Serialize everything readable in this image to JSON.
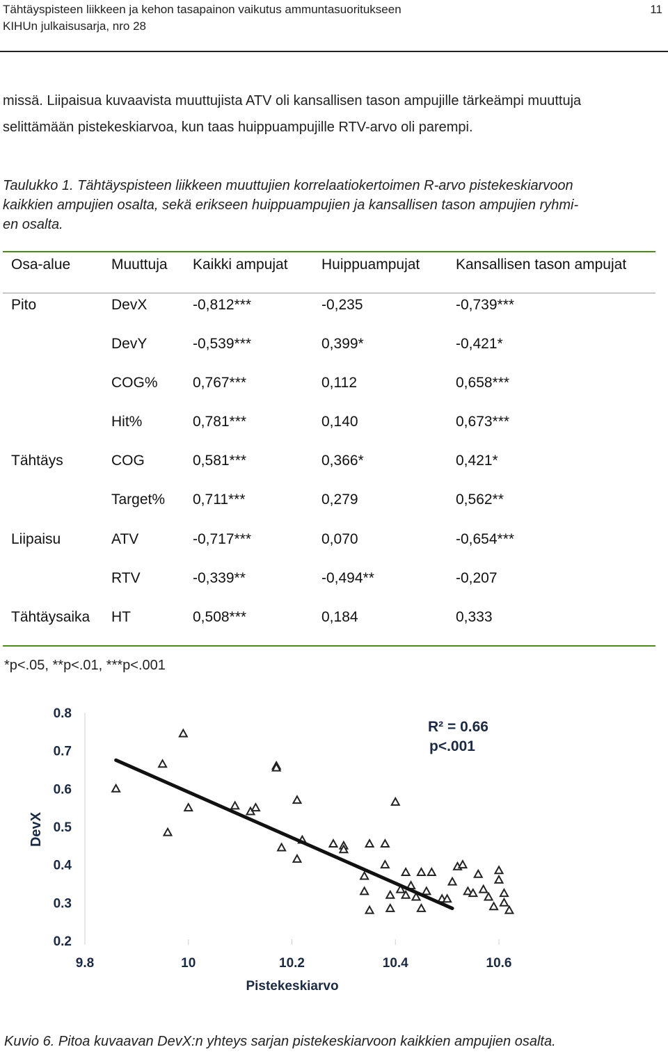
{
  "header": {
    "line1": "Tähtäyspisteen liikkeen ja kehon tasapainon vaikutus ammuntasuoritukseen",
    "line2": "KIHUn julkaisusarja, nro 28",
    "page_number": "11"
  },
  "body": {
    "line1": "missä. Liipaisua kuvaavista muuttujista ATV oli kansallisen tason ampujille tärkeämpi muuttuja",
    "line2": "selittämään pistekeskiarvoa, kun taas huippuampujille RTV-arvo oli parempi."
  },
  "table_caption": {
    "line1": "Taulukko 1. Tähtäyspisteen liikkeen muuttujien korrelaatiokertoimen R-arvo pistekeskiarvoon",
    "line2": "kaikkien ampujien osalta, sekä erikseen huippuampujien ja kansallisen tason ampujien ryhmi-",
    "line3": "en osalta."
  },
  "table": {
    "headers": [
      "Osa-alue",
      "Muuttuja",
      "Kaikki ampujat",
      "Huippuampujat",
      "Kansallisen tason ampujat"
    ],
    "rows": [
      [
        "Pito",
        "DevX",
        "-0,812***",
        "-0,235",
        "-0,739***"
      ],
      [
        "",
        "DevY",
        "-0,539***",
        "0,399*",
        "-0,421*"
      ],
      [
        "",
        "COG%",
        "0,767***",
        "0,112",
        "0,658***"
      ],
      [
        "",
        "Hit%",
        "0,781***",
        "0,140",
        "0,673***"
      ],
      [
        "Tähtäys",
        "COG",
        "0,581***",
        "0,366*",
        "0,421*"
      ],
      [
        "",
        "Target%",
        "0,711***",
        "0,279",
        "0,562**"
      ],
      [
        "Liipaisu",
        "ATV",
        "-0,717***",
        "0,070",
        "-0,654***"
      ],
      [
        "",
        "RTV",
        "-0,339**",
        "-0,494**",
        "-0,207"
      ],
      [
        "Tähtäysaika",
        "HT",
        "0,508***",
        "0,184",
        "0,333"
      ]
    ],
    "footnote": "*p<.05, **p<.01, ***p<.001"
  },
  "chart_data": {
    "type": "scatter",
    "xlabel": "Pistekeskiarvo",
    "ylabel": "DevX",
    "xlim": [
      9.8,
      10.6
    ],
    "ylim": [
      0.2,
      0.8
    ],
    "xticks": [
      "9.8",
      "10",
      "10.2",
      "10.4",
      "10.6"
    ],
    "yticks": [
      "0.2",
      "0.3",
      "0.4",
      "0.5",
      "0.6",
      "0.7",
      "0.8"
    ],
    "annotation_line1": "R² = 0.66",
    "annotation_line2": "p<.001",
    "marker": "triangle",
    "marker_color": "#222222",
    "trendline": {
      "x": [
        9.86,
        10.51
      ],
      "y": [
        0.675,
        0.285
      ],
      "color": "#111111"
    },
    "points": [
      {
        "x": 9.86,
        "y": 0.6
      },
      {
        "x": 9.95,
        "y": 0.665
      },
      {
        "x": 9.96,
        "y": 0.485
      },
      {
        "x": 9.99,
        "y": 0.745
      },
      {
        "x": 10.0,
        "y": 0.55
      },
      {
        "x": 10.09,
        "y": 0.555
      },
      {
        "x": 10.12,
        "y": 0.54
      },
      {
        "x": 10.13,
        "y": 0.55
      },
      {
        "x": 10.17,
        "y": 0.66
      },
      {
        "x": 10.17,
        "y": 0.655
      },
      {
        "x": 10.18,
        "y": 0.445
      },
      {
        "x": 10.21,
        "y": 0.57
      },
      {
        "x": 10.21,
        "y": 0.415
      },
      {
        "x": 10.22,
        "y": 0.465
      },
      {
        "x": 10.28,
        "y": 0.455
      },
      {
        "x": 10.3,
        "y": 0.45
      },
      {
        "x": 10.3,
        "y": 0.44
      },
      {
        "x": 10.34,
        "y": 0.37
      },
      {
        "x": 10.34,
        "y": 0.33
      },
      {
        "x": 10.35,
        "y": 0.455
      },
      {
        "x": 10.35,
        "y": 0.28
      },
      {
        "x": 10.38,
        "y": 0.455
      },
      {
        "x": 10.38,
        "y": 0.4
      },
      {
        "x": 10.39,
        "y": 0.285
      },
      {
        "x": 10.39,
        "y": 0.32
      },
      {
        "x": 10.4,
        "y": 0.565
      },
      {
        "x": 10.41,
        "y": 0.335
      },
      {
        "x": 10.42,
        "y": 0.38
      },
      {
        "x": 10.42,
        "y": 0.32
      },
      {
        "x": 10.43,
        "y": 0.345
      },
      {
        "x": 10.44,
        "y": 0.315
      },
      {
        "x": 10.45,
        "y": 0.285
      },
      {
        "x": 10.45,
        "y": 0.38
      },
      {
        "x": 10.46,
        "y": 0.33
      },
      {
        "x": 10.47,
        "y": 0.38
      },
      {
        "x": 10.49,
        "y": 0.31
      },
      {
        "x": 10.5,
        "y": 0.31
      },
      {
        "x": 10.51,
        "y": 0.355
      },
      {
        "x": 10.52,
        "y": 0.395
      },
      {
        "x": 10.53,
        "y": 0.4
      },
      {
        "x": 10.54,
        "y": 0.33
      },
      {
        "x": 10.55,
        "y": 0.325
      },
      {
        "x": 10.56,
        "y": 0.375
      },
      {
        "x": 10.57,
        "y": 0.335
      },
      {
        "x": 10.58,
        "y": 0.315
      },
      {
        "x": 10.59,
        "y": 0.29
      },
      {
        "x": 10.6,
        "y": 0.385
      },
      {
        "x": 10.6,
        "y": 0.36
      },
      {
        "x": 10.61,
        "y": 0.325
      },
      {
        "x": 10.61,
        "y": 0.3
      },
      {
        "x": 10.62,
        "y": 0.28
      }
    ]
  },
  "figure_caption": "Kuvio 6. Pitoa kuvaavan DevX:n yhteys sarjan pistekeskiarvoon kaikkien ampujien osalta."
}
